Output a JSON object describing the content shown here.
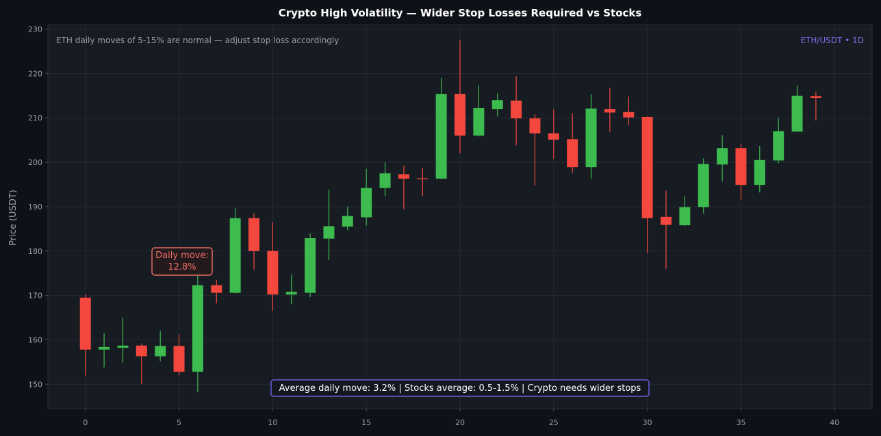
{
  "chart_data": {
    "type": "candlestick",
    "title": "Crypto High Volatility — Wider Stop Losses Required vs Stocks",
    "subtitle": "ETH daily moves of 5-15% are normal — adjust stop loss accordingly",
    "pair_label": "ETH/USDT • 1D",
    "ylabel": "Price (USDT)",
    "xlabel": "",
    "xlim": [
      -2,
      42
    ],
    "ylim": [
      144.5,
      231
    ],
    "x_ticks": [
      0,
      5,
      10,
      15,
      20,
      25,
      30,
      35,
      40
    ],
    "y_ticks": [
      150,
      160,
      170,
      180,
      190,
      200,
      210,
      220,
      230
    ],
    "grid": true,
    "colors": {
      "up": "#3dbb4e",
      "down": "#f4483f",
      "background": "#171b22",
      "page": "#0e1117"
    },
    "candles": [
      {
        "x": 0,
        "open": 169.5,
        "high": 170.2,
        "low": 152.0,
        "close": 157.8
      },
      {
        "x": 1,
        "open": 157.8,
        "high": 161.5,
        "low": 153.8,
        "close": 158.4
      },
      {
        "x": 2,
        "open": 158.2,
        "high": 165.0,
        "low": 154.8,
        "close": 158.7
      },
      {
        "x": 3,
        "open": 158.7,
        "high": 159.2,
        "low": 150.0,
        "close": 156.3
      },
      {
        "x": 4,
        "open": 156.3,
        "high": 162.0,
        "low": 155.2,
        "close": 158.6
      },
      {
        "x": 5,
        "open": 158.6,
        "high": 161.3,
        "low": 152.0,
        "close": 152.8
      },
      {
        "x": 6,
        "open": 152.8,
        "high": 174.5,
        "low": 148.2,
        "close": 172.3
      },
      {
        "x": 7,
        "open": 172.3,
        "high": 173.5,
        "low": 168.2,
        "close": 170.6
      },
      {
        "x": 8,
        "open": 170.6,
        "high": 189.6,
        "low": 170.4,
        "close": 187.4
      },
      {
        "x": 9,
        "open": 187.4,
        "high": 188.5,
        "low": 175.8,
        "close": 180.0
      },
      {
        "x": 10,
        "open": 180.0,
        "high": 186.5,
        "low": 166.5,
        "close": 170.2
      },
      {
        "x": 11,
        "open": 170.2,
        "high": 174.8,
        "low": 168.0,
        "close": 170.8
      },
      {
        "x": 12,
        "open": 170.6,
        "high": 184.0,
        "low": 169.6,
        "close": 182.9
      },
      {
        "x": 13,
        "open": 182.8,
        "high": 193.8,
        "low": 178.0,
        "close": 185.6
      },
      {
        "x": 14,
        "open": 185.5,
        "high": 190.0,
        "low": 184.7,
        "close": 187.9
      },
      {
        "x": 15,
        "open": 187.6,
        "high": 198.5,
        "low": 185.7,
        "close": 194.2
      },
      {
        "x": 16,
        "open": 194.2,
        "high": 200.0,
        "low": 192.3,
        "close": 197.5
      },
      {
        "x": 17,
        "open": 197.3,
        "high": 199.2,
        "low": 189.4,
        "close": 196.3
      },
      {
        "x": 18,
        "open": 196.4,
        "high": 198.7,
        "low": 192.3,
        "close": 196.3
      },
      {
        "x": 19,
        "open": 196.3,
        "high": 219.0,
        "low": 196.2,
        "close": 215.4
      },
      {
        "x": 20,
        "open": 215.4,
        "high": 227.5,
        "low": 202.0,
        "close": 206.0
      },
      {
        "x": 21,
        "open": 206.0,
        "high": 217.3,
        "low": 205.8,
        "close": 212.2
      },
      {
        "x": 22,
        "open": 212.0,
        "high": 215.5,
        "low": 210.3,
        "close": 214.0
      },
      {
        "x": 23,
        "open": 213.9,
        "high": 219.4,
        "low": 203.8,
        "close": 209.9
      },
      {
        "x": 24,
        "open": 209.9,
        "high": 210.8,
        "low": 194.8,
        "close": 206.5
      },
      {
        "x": 25,
        "open": 206.5,
        "high": 211.9,
        "low": 200.8,
        "close": 205.1
      },
      {
        "x": 26,
        "open": 205.2,
        "high": 211.0,
        "low": 197.6,
        "close": 198.9
      },
      {
        "x": 27,
        "open": 198.9,
        "high": 215.3,
        "low": 196.3,
        "close": 212.1
      },
      {
        "x": 28,
        "open": 212.0,
        "high": 216.8,
        "low": 206.8,
        "close": 211.2
      },
      {
        "x": 29,
        "open": 211.3,
        "high": 214.8,
        "low": 208.3,
        "close": 210.1
      },
      {
        "x": 30,
        "open": 210.2,
        "high": 210.3,
        "low": 179.5,
        "close": 187.4
      },
      {
        "x": 31,
        "open": 187.7,
        "high": 193.6,
        "low": 176.0,
        "close": 185.9
      },
      {
        "x": 32,
        "open": 185.8,
        "high": 192.3,
        "low": 185.6,
        "close": 189.9
      },
      {
        "x": 33,
        "open": 189.9,
        "high": 200.9,
        "low": 188.4,
        "close": 199.6
      },
      {
        "x": 34,
        "open": 199.5,
        "high": 206.1,
        "low": 195.7,
        "close": 203.2
      },
      {
        "x": 35,
        "open": 203.2,
        "high": 204.1,
        "low": 191.6,
        "close": 194.9
      },
      {
        "x": 36,
        "open": 194.9,
        "high": 203.7,
        "low": 193.2,
        "close": 200.5
      },
      {
        "x": 37,
        "open": 200.4,
        "high": 210.0,
        "low": 199.8,
        "close": 207.0
      },
      {
        "x": 38,
        "open": 206.9,
        "high": 217.3,
        "low": 206.9,
        "close": 215.0
      },
      {
        "x": 39,
        "open": 214.9,
        "high": 215.9,
        "low": 209.4,
        "close": 214.5
      }
    ],
    "annotations": {
      "callout": {
        "line1": "Daily move:",
        "line2": "12.8%",
        "anchor_x": 6,
        "anchor_y": 178.7
      },
      "footer": {
        "text": "Average daily move: 3.2% | Stocks average: 0.5-1.5% | Crypto needs wider stops",
        "anchor_x": 19.7,
        "anchor_y": 149.2
      }
    }
  }
}
